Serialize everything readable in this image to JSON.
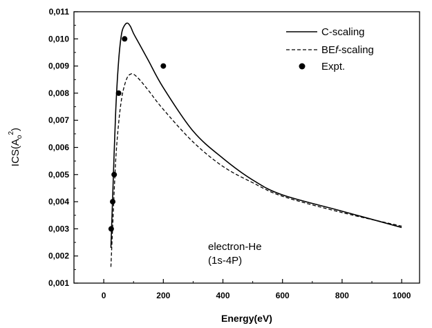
{
  "chart_data": {
    "type": "line",
    "xlabel": "Energy(eV)",
    "ylabel_main": "ICS(A",
    "ylabel_sub": "o",
    "ylabel_sup": "2",
    "ylabel_close": ")",
    "xlim": [
      -100,
      1060
    ],
    "ylim": [
      0.001,
      0.011
    ],
    "x_ticks": [
      0,
      200,
      400,
      600,
      800,
      1000
    ],
    "x_tick_labels": [
      "0",
      "200",
      "400",
      "600",
      "800",
      "1000"
    ],
    "y_ticks": [
      0.001,
      0.002,
      0.003,
      0.004,
      0.005,
      0.006,
      0.007,
      0.008,
      0.009,
      0.01,
      0.011
    ],
    "y_tick_labels": [
      "0,001",
      "0,002",
      "0,003",
      "0,004",
      "0,005",
      "0,006",
      "0,007",
      "0,008",
      "0,009",
      "0,010",
      "0,011"
    ],
    "grid": false,
    "legend_position": "top-right",
    "annotation_line1": "electron-He",
    "annotation_line2": "(1s-4P)",
    "series": [
      {
        "name": "C-scaling",
        "style": "solid",
        "x": [
          24,
          30,
          40,
          50,
          60,
          70,
          80,
          90,
          100,
          120,
          150,
          200,
          300,
          400,
          500,
          600,
          800,
          1000
        ],
        "y": [
          0.0023,
          0.0042,
          0.0073,
          0.0092,
          0.0102,
          0.0105,
          0.01058,
          0.01045,
          0.0102,
          0.0098,
          0.0092,
          0.0082,
          0.0066,
          0.0056,
          0.0048,
          0.00425,
          0.00365,
          0.00305
        ]
      },
      {
        "name_prefix": "BE",
        "name_italic": "f",
        "name_suffix": "-scaling",
        "style": "dashed",
        "x": [
          24,
          30,
          40,
          50,
          60,
          70,
          80,
          90,
          100,
          120,
          150,
          200,
          300,
          400,
          500,
          600,
          800,
          1000
        ],
        "y": [
          0.0016,
          0.0031,
          0.0055,
          0.0069,
          0.0078,
          0.0083,
          0.0086,
          0.0087,
          0.0087,
          0.0085,
          0.0081,
          0.0074,
          0.0062,
          0.0053,
          0.0047,
          0.0042,
          0.0036,
          0.0031
        ]
      },
      {
        "name": "Expt.",
        "style": "marker",
        "x": [
          25,
          30,
          35,
          50,
          70,
          200
        ],
        "y": [
          0.003,
          0.004,
          0.005,
          0.008,
          0.01,
          0.009
        ]
      }
    ]
  }
}
